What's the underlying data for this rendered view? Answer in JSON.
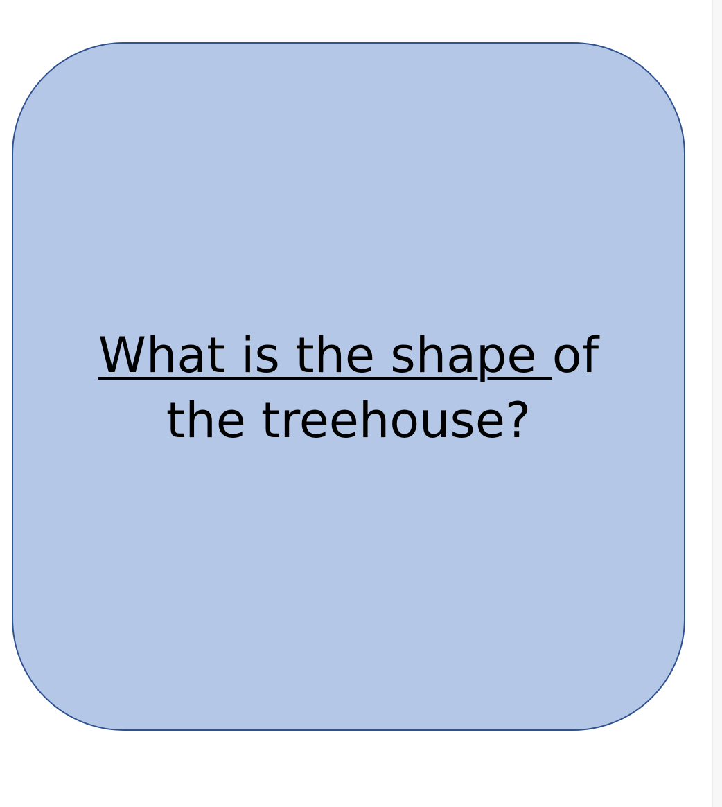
{
  "card": {
    "fill_color": "#b4c7e7",
    "border_color": "#2f528f",
    "question": {
      "underlined_part": "What is the shape ",
      "rest_of_first_line": "of",
      "second_line": "the treehouse?"
    }
  }
}
